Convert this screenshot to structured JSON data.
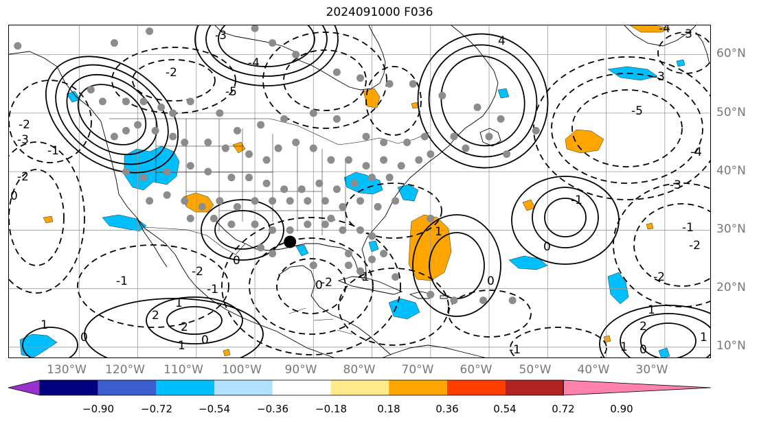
{
  "figure": {
    "title": "2024091000 F036"
  },
  "map": {
    "projection": "PlateCarree",
    "lon_range": [
      -142,
      -22
    ],
    "lat_range": [
      8,
      65
    ],
    "lon_ticks": [
      "130°W",
      "120°W",
      "110°W",
      "100°W",
      "90°W",
      "80°W",
      "70°W",
      "60°W",
      "50°W",
      "40°W",
      "30°W"
    ],
    "lat_ticks": [
      "10°N",
      "20°N",
      "30°N",
      "40°N",
      "50°N",
      "60°N"
    ],
    "gridlines": true
  },
  "colorbar": {
    "levels": [
      "−0.90",
      "−0.72",
      "−0.54",
      "−0.36",
      "−0.18",
      "0.18",
      "0.36",
      "0.54",
      "0.72",
      "0.90"
    ],
    "colors": [
      "#9932cc",
      "#000080",
      "#3a5fcd",
      "#00bfff",
      "#b0e2ff",
      "#ffffff",
      "#ffe98a",
      "#ffa500",
      "#ff3d00",
      "#b22222",
      "#ff82ab"
    ],
    "extend": "both"
  },
  "contour_labels": [
    "-5",
    "-4",
    "-3",
    "-2",
    "-2",
    "-3",
    "-1",
    "-2",
    "0",
    "-1",
    "-2",
    "-1",
    "0",
    "1",
    "2",
    "1",
    "2",
    "1",
    "0",
    "0",
    "-1",
    "4",
    "-4",
    "-3",
    "-3",
    "-5",
    "-4",
    "-3",
    "-1",
    "-2",
    "-2",
    "1",
    "0",
    "0",
    "-1",
    "1",
    "2",
    "1",
    "1",
    "0",
    "0",
    "-1",
    "-2"
  ],
  "markers": {
    "station_color": "#8c8c8c",
    "highlight_color": "#000000",
    "stations": [
      [
        -140.5,
        61.5
      ],
      [
        -124,
        62
      ],
      [
        -118,
        64
      ],
      [
        -100,
        64.5
      ],
      [
        -97,
        62
      ],
      [
        -93,
        60
      ],
      [
        -86,
        57
      ],
      [
        -82,
        56
      ],
      [
        -77,
        55
      ],
      [
        -73,
        55
      ],
      [
        -68,
        53
      ],
      [
        -62,
        51
      ],
      [
        -58,
        49
      ],
      [
        -57,
        43
      ],
      [
        -128,
        54
      ],
      [
        -126,
        52
      ],
      [
        -122,
        52
      ],
      [
        -119,
        52
      ],
      [
        -116,
        51
      ],
      [
        -114,
        50
      ],
      [
        -111,
        52
      ],
      [
        -106,
        50
      ],
      [
        -103,
        47
      ],
      [
        -99,
        48
      ],
      [
        -95,
        49
      ],
      [
        -90,
        50
      ],
      [
        -86,
        49
      ],
      [
        -81,
        46
      ],
      [
        -78,
        45
      ],
      [
        -74,
        45
      ],
      [
        -71,
        46
      ],
      [
        -66,
        46
      ],
      [
        -64,
        44
      ],
      [
        -60,
        46
      ],
      [
        -52,
        47
      ],
      [
        -124,
        46
      ],
      [
        -122,
        47
      ],
      [
        -120,
        48
      ],
      [
        -117,
        47
      ],
      [
        -114,
        46
      ],
      [
        -112,
        45
      ],
      [
        -108,
        45
      ],
      [
        -105,
        44
      ],
      [
        -101,
        43
      ],
      [
        -98,
        42
      ],
      [
        -96,
        44
      ],
      [
        -93,
        45
      ],
      [
        -90,
        44
      ],
      [
        -87,
        42
      ],
      [
        -84,
        42
      ],
      [
        -81,
        41
      ],
      [
        -78,
        42
      ],
      [
        -75,
        41
      ],
      [
        -72,
        42
      ],
      [
        -70,
        43
      ],
      [
        -122,
        40
      ],
      [
        -119,
        39
      ],
      [
        -115,
        40
      ],
      [
        -111,
        41
      ],
      [
        -108,
        40
      ],
      [
        -104,
        39
      ],
      [
        -101,
        39
      ],
      [
        -98,
        38
      ],
      [
        -95,
        37
      ],
      [
        -92,
        37
      ],
      [
        -89,
        38
      ],
      [
        -86,
        37
      ],
      [
        -83,
        38
      ],
      [
        -80,
        39
      ],
      [
        -77,
        39
      ],
      [
        -118,
        35
      ],
      [
        -115,
        36
      ],
      [
        -112,
        35
      ],
      [
        -109,
        34
      ],
      [
        -106,
        35
      ],
      [
        -103,
        34
      ],
      [
        -100,
        35
      ],
      [
        -97,
        35
      ],
      [
        -94,
        35
      ],
      [
        -91,
        35
      ],
      [
        -88,
        35
      ],
      [
        -85,
        34
      ],
      [
        -82,
        35
      ],
      [
        -79,
        34
      ],
      [
        -76,
        35
      ],
      [
        -111,
        32
      ],
      [
        -107,
        32
      ],
      [
        -104,
        31
      ],
      [
        -100,
        31
      ],
      [
        -97,
        30
      ],
      [
        -94,
        30
      ],
      [
        -91,
        31
      ],
      [
        -88,
        31
      ],
      [
        -85,
        30
      ],
      [
        -82,
        30
      ],
      [
        -80,
        29
      ],
      [
        -99,
        27
      ],
      [
        -97,
        26
      ],
      [
        -90,
        24
      ],
      [
        -84,
        24
      ],
      [
        -82,
        23
      ],
      [
        -80,
        25
      ],
      [
        -78,
        26
      ],
      [
        -76,
        22
      ],
      [
        -70,
        19
      ],
      [
        -66,
        18
      ],
      [
        -61,
        18
      ],
      [
        -56,
        18
      ],
      [
        -70,
        32
      ],
      [
        -87,
        32
      ],
      [
        -84,
        26
      ]
    ],
    "highlight": [
      [
        -94,
        28
      ]
    ]
  }
}
